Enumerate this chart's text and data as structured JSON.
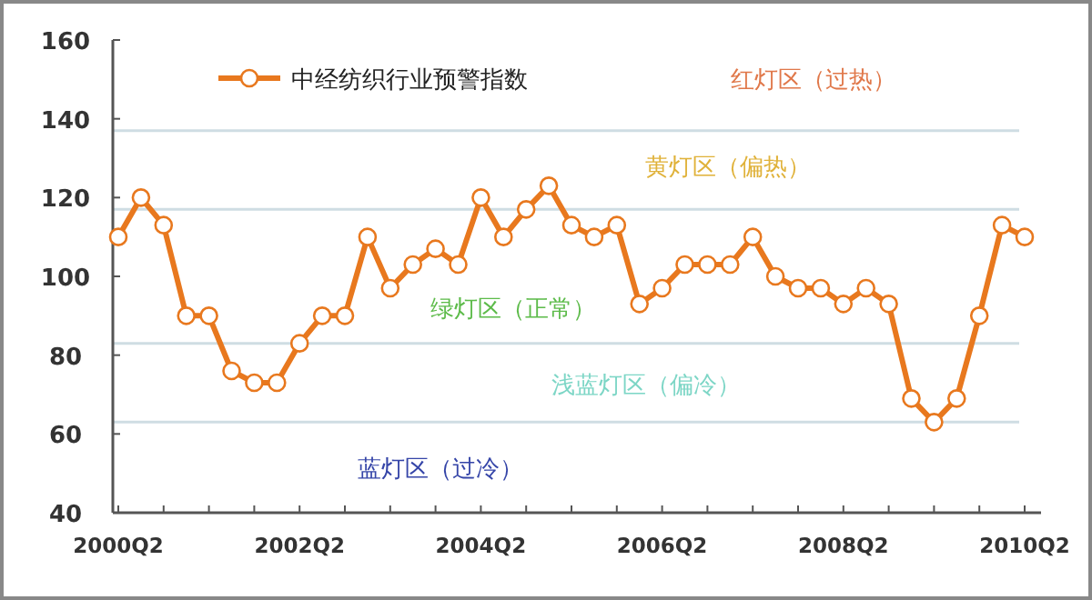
{
  "chart_data": {
    "type": "line",
    "categories": [
      "2000Q2",
      null,
      null,
      null,
      null,
      null,
      null,
      null,
      "2002Q2",
      null,
      null,
      null,
      null,
      null,
      null,
      null,
      "2004Q2",
      null,
      null,
      null,
      null,
      null,
      null,
      null,
      "2006Q2",
      null,
      null,
      null,
      null,
      null,
      null,
      null,
      "2008Q2",
      null,
      null,
      null,
      null,
      null,
      null,
      null,
      "2010Q2"
    ],
    "series": [
      {
        "name": "中经纺织行业预警指数",
        "color": "#e8781e",
        "values": [
          110,
          120,
          113,
          90,
          90,
          76,
          73,
          73,
          83,
          90,
          90,
          110,
          97,
          103,
          107,
          103,
          120,
          110,
          117,
          123,
          113,
          110,
          113,
          93,
          97,
          103,
          103,
          103,
          110,
          100,
          97,
          97,
          93,
          97,
          93,
          69,
          63,
          69,
          90,
          113,
          110
        ]
      }
    ],
    "ylim": [
      40,
      160
    ],
    "yticks": [
      40,
      60,
      80,
      100,
      120,
      140,
      160
    ],
    "ref_lines": [
      {
        "axis": "y",
        "value": 137,
        "color": "#cfdde3"
      },
      {
        "axis": "y",
        "value": 117,
        "color": "#cfdde3"
      },
      {
        "axis": "y",
        "value": 83,
        "color": "#cfdde3"
      },
      {
        "axis": "y",
        "value": 63,
        "color": "#cfdde3"
      }
    ],
    "annotations": [
      "红灯区（过热）",
      "黄灯区（偏热）",
      "绿灯区（正常）",
      "浅蓝灯区（偏冷）",
      "蓝灯区（过冷）"
    ],
    "legend": "top left",
    "marker": "circle",
    "line_style": "solid",
    "grid": false
  }
}
